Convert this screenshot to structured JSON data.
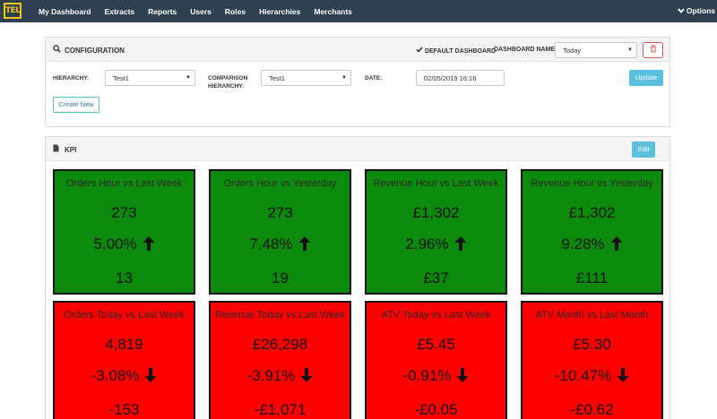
{
  "nav": {
    "logo": "TEL",
    "items": [
      "My Dashboard",
      "Extracts",
      "Reports",
      "Users",
      "Roles",
      "Hierarchies",
      "Merchants"
    ],
    "options": "Options"
  },
  "config": {
    "title": "CONFIGURATION",
    "default_dashboard": "DEFAULT DASHBOARD",
    "dashboard_name_label": "DASHBOARD NAME:",
    "dashboard_name_value": "Today",
    "hierarchy_label": "HIERARCHY:",
    "hierarchy_value": "Test1",
    "comparison_label_1": "COMPARISON",
    "comparison_label_2": "HIERARCHY:",
    "comparison_value": "Test1",
    "date_label": "DATE:",
    "date_value": "02/05/2019 16:16",
    "update_label": "Update",
    "create_label": "Create New"
  },
  "kpi": {
    "title": "KPI",
    "edit_label": "Edit",
    "tiles": [
      {
        "title": "Orders Hour vs Last Week",
        "value": "273",
        "change": "5.00%",
        "diff": "13",
        "trend": "up"
      },
      {
        "title": "Orders Hour vs Yesterday",
        "value": "273",
        "change": "7.48%",
        "diff": "19",
        "trend": "up"
      },
      {
        "title": "Revenue Hour vs Last Week",
        "value": "£1,302",
        "change": "2.96%",
        "diff": "£37",
        "trend": "up"
      },
      {
        "title": "Revenue Hour vs Yesterday",
        "value": "£1,302",
        "change": "9.28%",
        "diff": "£111",
        "trend": "up"
      },
      {
        "title": "Orders Today vs Last Week",
        "value": "4,819",
        "change": "-3.08%",
        "diff": "-153",
        "trend": "down"
      },
      {
        "title": "Revenue Today vs Last Week",
        "value": "£26,298",
        "change": "-3.91%",
        "diff": "-£1,071",
        "trend": "down"
      },
      {
        "title": "ATV Today vs Last Week",
        "value": "£5.45",
        "change": "-0.91%",
        "diff": "-£0.05",
        "trend": "down"
      },
      {
        "title": "ATV Month vs Last Month",
        "value": "£5.30",
        "change": "-10.47%",
        "diff": "-£0.62",
        "trend": "down"
      }
    ]
  },
  "colors": {
    "nav_bg": "#2f4150",
    "up": "#0b8a0b",
    "down": "#ff0000",
    "info": "#5bc0de",
    "danger": "#d9534f"
  },
  "icons": {
    "search": "search-icon",
    "check": "check-icon",
    "trash": "trash-icon",
    "document": "document-icon",
    "arrow_up": "arrow-up-icon",
    "arrow_down": "arrow-down-icon",
    "chevron": "chevron-down-icon"
  }
}
